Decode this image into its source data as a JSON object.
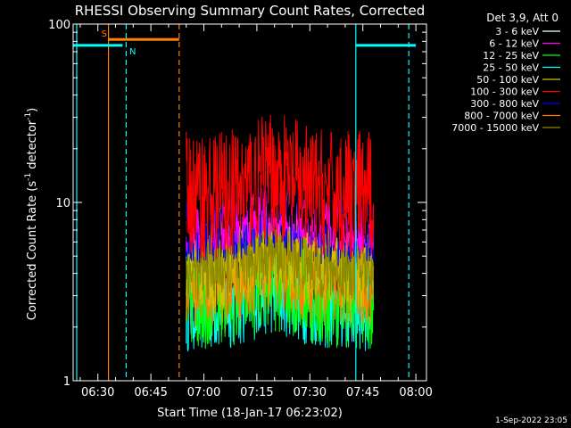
{
  "chart_data": {
    "type": "line",
    "title": "RHESSI Observing Summary Count Rates, Corrected",
    "xlabel": "Start Time (18-Jan-17 06:23:02)",
    "ylabel_main": "Corrected Count Rate (s",
    "ylabel_sup1": "-1",
    "ylabel_mid": " detector",
    "ylabel_sup2": "-1",
    "ylabel_end": ")",
    "timestamp": "1-Sep-2022 23:05",
    "y_scale": "log",
    "ylim": [
      1,
      100
    ],
    "xlim": [
      "06:23",
      "08:03"
    ],
    "x_ticks": [
      "06:30",
      "06:45",
      "07:00",
      "07:15",
      "07:30",
      "07:45",
      "08:00"
    ],
    "y_ticks": [
      "1",
      "10",
      "100"
    ],
    "data_window": [
      "06:55",
      "07:48"
    ],
    "legend_header": "Det 3,9, Att 0",
    "legend_placement": "right",
    "series": [
      {
        "name": "3 - 6 keV",
        "color": "#000000",
        "level": 8.8,
        "spread": 1.5
      },
      {
        "name": "6 - 12 keV",
        "color": "#ff00ff",
        "level": 7.2,
        "spread": 1.4
      },
      {
        "name": "12 - 25 keV",
        "color": "#00ff00",
        "level": 3.0,
        "spread": 2.0
      },
      {
        "name": "25 - 50 keV",
        "color": "#00ffff",
        "level": 2.6,
        "spread": 1.8
      },
      {
        "name": "50 - 100 keV",
        "color": "#d4c200",
        "level": 4.8,
        "spread": 2.0
      },
      {
        "name": "100 - 300 keV",
        "color": "#ff0000",
        "level": 11.0,
        "spread": 2.3
      },
      {
        "name": "300 - 800 keV",
        "color": "#0000ff",
        "level": 7.0,
        "spread": 1.6
      },
      {
        "name": "800 - 7000 keV",
        "color": "#ff8000",
        "level": 3.6,
        "spread": 1.8
      },
      {
        "name": "7000 - 15000 keV",
        "color": "#8b8b00",
        "level": 4.2,
        "spread": 1.5
      }
    ],
    "flags": [
      {
        "label": "S",
        "color": "#ff8000",
        "start": "06:33",
        "end": "06:53",
        "level": 82
      },
      {
        "label": "N",
        "color": "#00ffff",
        "start": "06:23",
        "end": "06:37",
        "level": 76
      },
      {
        "label": "",
        "color": "#00ffff",
        "start": "07:43",
        "end": "08:00",
        "level": 76
      }
    ],
    "vlines": [
      {
        "time": "06:24",
        "color": "#00ffff",
        "style": "solid"
      },
      {
        "time": "06:33",
        "color": "#ff8000",
        "style": "solid"
      },
      {
        "time": "06:38",
        "color": "#00ffff",
        "style": "dashed"
      },
      {
        "time": "06:53",
        "color": "#ff8000",
        "style": "dashed"
      },
      {
        "time": "07:43",
        "color": "#00ffff",
        "style": "solid"
      },
      {
        "time": "07:58",
        "color": "#00ffff",
        "style": "dashed"
      }
    ]
  }
}
